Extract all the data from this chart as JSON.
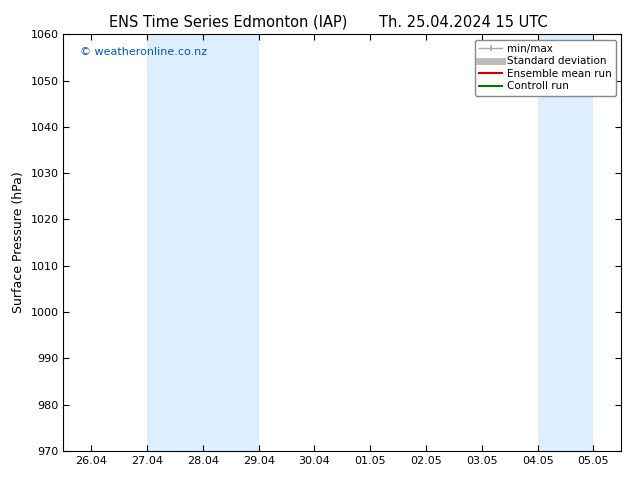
{
  "title_left": "ENS Time Series Edmonton (IAP)",
  "title_right": "Th. 25.04.2024 15 UTC",
  "ylabel": "Surface Pressure (hPa)",
  "ylim": [
    970,
    1060
  ],
  "yticks": [
    970,
    980,
    990,
    1000,
    1010,
    1020,
    1030,
    1040,
    1050,
    1060
  ],
  "xtick_labels": [
    "26.04",
    "27.04",
    "28.04",
    "29.04",
    "30.04",
    "01.05",
    "02.05",
    "03.05",
    "04.05",
    "05.05"
  ],
  "xtick_positions": [
    0,
    1,
    2,
    3,
    4,
    5,
    6,
    7,
    8,
    9
  ],
  "shaded_bands": [
    {
      "x_start": 1.0,
      "x_end": 3.0
    },
    {
      "x_start": 8.0,
      "x_end": 9.0
    }
  ],
  "watermark": "© weatheronline.co.nz",
  "watermark_color": "#0055cc",
  "background_color": "#ffffff",
  "plot_bg_color": "#ffffff",
  "shading_color": "#ddeeff",
  "title_fontsize": 10.5,
  "tick_fontsize": 8,
  "ylabel_fontsize": 9,
  "legend_fontsize": 7.5,
  "minmax_color": "#aaaaaa",
  "std_color": "#bbbbbb",
  "ensemble_color": "#cc0000",
  "control_color": "#007700"
}
